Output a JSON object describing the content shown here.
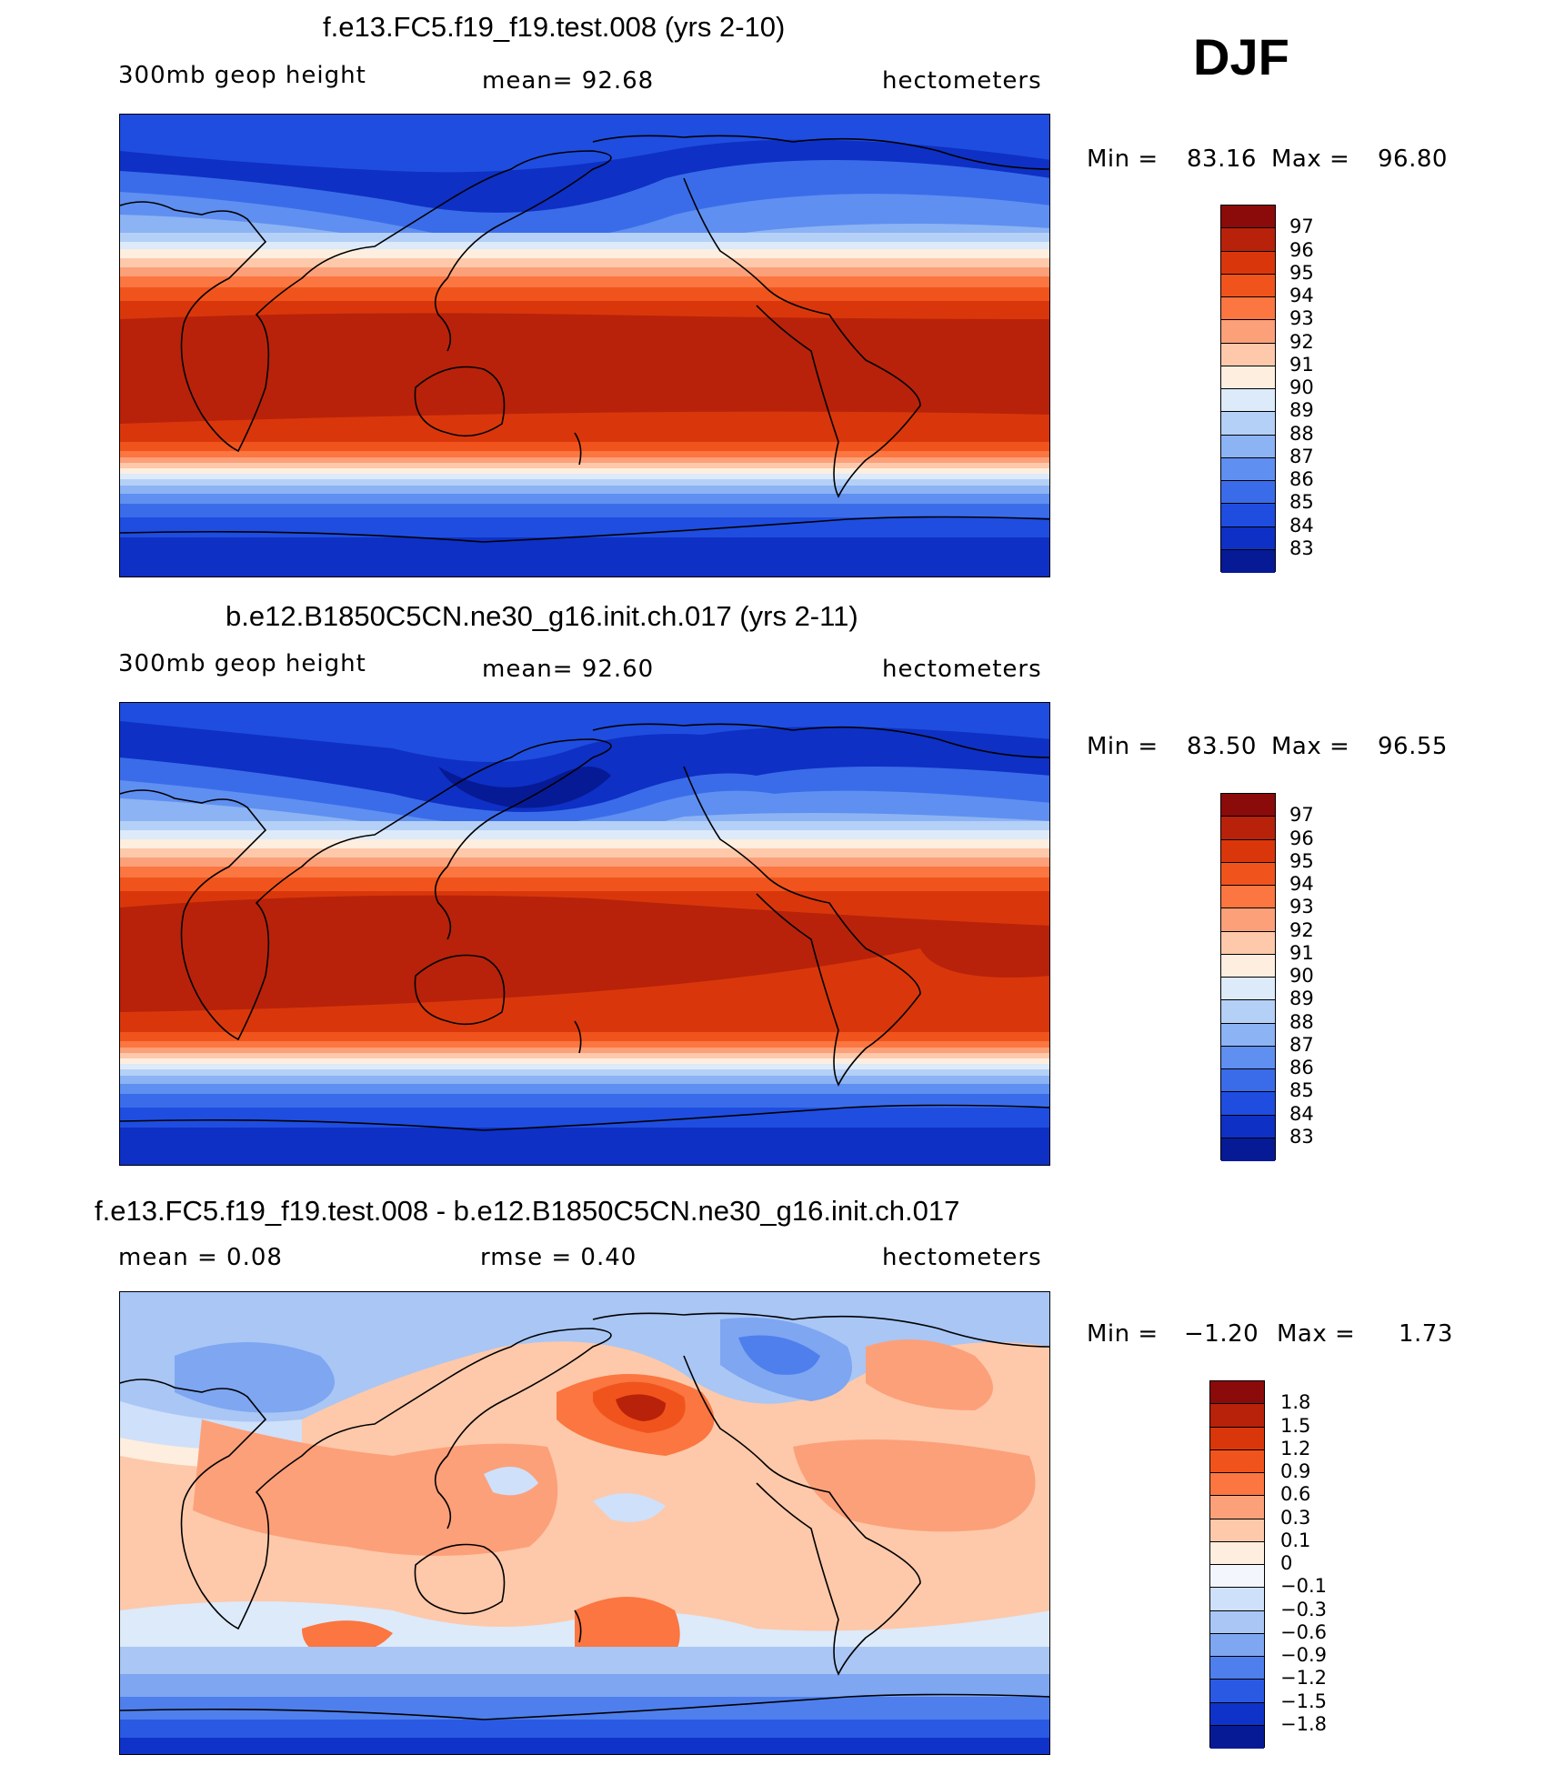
{
  "season": "DJF",
  "panels": [
    {
      "title": "f.e13.FC5.f19_f19.test.008 (yrs 2-10)",
      "left_label": "300mb  geop  height",
      "center_label": "mean=   92.68",
      "right_label": "hectometers",
      "min_label": "Min  =",
      "min_value": "83.16",
      "max_label": "Max  =",
      "max_value": "96.80",
      "colorbar": {
        "labels": [
          "97",
          "96",
          "95",
          "94",
          "93",
          "92",
          "91",
          "90",
          "89",
          "88",
          "87",
          "86",
          "85",
          "84",
          "83"
        ],
        "colors": [
          "#8b0a0a",
          "#b8220a",
          "#d9370b",
          "#f0541c",
          "#fb7640",
          "#fca07a",
          "#fdc9aa",
          "#fdeedf",
          "#dceafa",
          "#b5d0f7",
          "#8cb3f3",
          "#5f8ff0",
          "#3a6cea",
          "#1f4de0",
          "#0e30c4",
          "#061a96"
        ]
      }
    },
    {
      "title": "b.e12.B1850C5CN.ne30_g16.init.ch.017 (yrs 2-11)",
      "left_label": "300mb  geop  height",
      "center_label": "mean=   92.60",
      "right_label": "hectometers",
      "min_label": "Min  =",
      "min_value": "83.50",
      "max_label": "Max  =",
      "max_value": "96.55",
      "colorbar": {
        "labels": [
          "97",
          "96",
          "95",
          "94",
          "93",
          "92",
          "91",
          "90",
          "89",
          "88",
          "87",
          "86",
          "85",
          "84",
          "83"
        ],
        "colors": [
          "#8b0a0a",
          "#b8220a",
          "#d9370b",
          "#f0541c",
          "#fb7640",
          "#fca07a",
          "#fdc9aa",
          "#fdeedf",
          "#dceafa",
          "#b5d0f7",
          "#8cb3f3",
          "#5f8ff0",
          "#3a6cea",
          "#1f4de0",
          "#0e30c4",
          "#061a96"
        ]
      }
    },
    {
      "title": "f.e13.FC5.f19_f19.test.008 - b.e12.B1850C5CN.ne30_g16.init.ch.017",
      "left_label": "mean =     0.08",
      "center_label": "rmse =     0.40",
      "right_label": "hectometers",
      "min_label": "Min  =",
      "min_value": "−1.20",
      "max_label": "Max  =",
      "max_value": "1.73",
      "colorbar": {
        "labels": [
          "1.8",
          "1.5",
          "1.2",
          "0.9",
          "0.6",
          "0.3",
          "0.1",
          "0",
          "−0.1",
          "−0.3",
          "−0.6",
          "−0.9",
          "−1.2",
          "−1.5",
          "−1.8"
        ],
        "colors": [
          "#8b0a0a",
          "#b8220a",
          "#d9370b",
          "#f0541c",
          "#fb7640",
          "#fca07a",
          "#fdc9aa",
          "#fdeedf",
          "#f3f7fd",
          "#cfe0fa",
          "#a9c6f5",
          "#7ea6f1",
          "#4f7fec",
          "#2a5ae3",
          "#0f33c8",
          "#061a96"
        ]
      }
    }
  ]
}
